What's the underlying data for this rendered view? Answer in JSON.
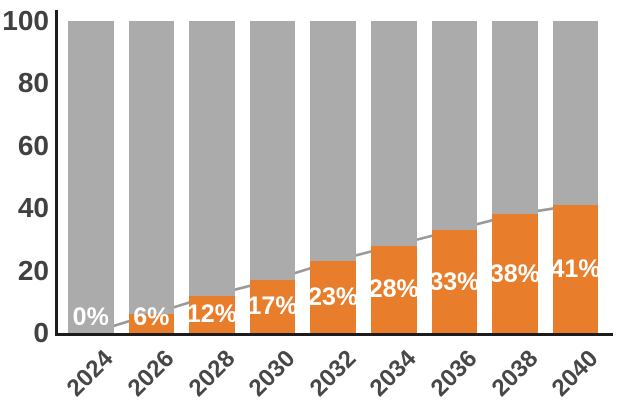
{
  "chart_data": {
    "type": "bar",
    "stacked": true,
    "title": "",
    "xlabel": "",
    "ylabel": "",
    "categories": [
      "2024",
      "2026",
      "2028",
      "2030",
      "2032",
      "2034",
      "2036",
      "2038",
      "2040"
    ],
    "series": [
      {
        "name": "highlighted-share",
        "color": "#E87E2B",
        "values": [
          0,
          6,
          12,
          17,
          23,
          28,
          33,
          38,
          41
        ]
      },
      {
        "name": "remainder",
        "color": "#ABABAB",
        "values": [
          100,
          94,
          88,
          83,
          77,
          72,
          67,
          62,
          59
        ]
      }
    ],
    "bar_labels": [
      "0%",
      "6%",
      "12%",
      "17%",
      "23%",
      "28%",
      "33%",
      "38%",
      "41%"
    ],
    "bar_label_color": "#FFFFFF",
    "trend_line": {
      "values": [
        0,
        6,
        12,
        17,
        23,
        28,
        33,
        38,
        41
      ],
      "color": "#999999"
    },
    "yticks": [
      0,
      20,
      40,
      60,
      80,
      100
    ],
    "ylim": [
      0,
      100
    ],
    "axis_color": "#1C1C1C",
    "tick_label_color": "#414141",
    "grid": false,
    "legend": false
  }
}
